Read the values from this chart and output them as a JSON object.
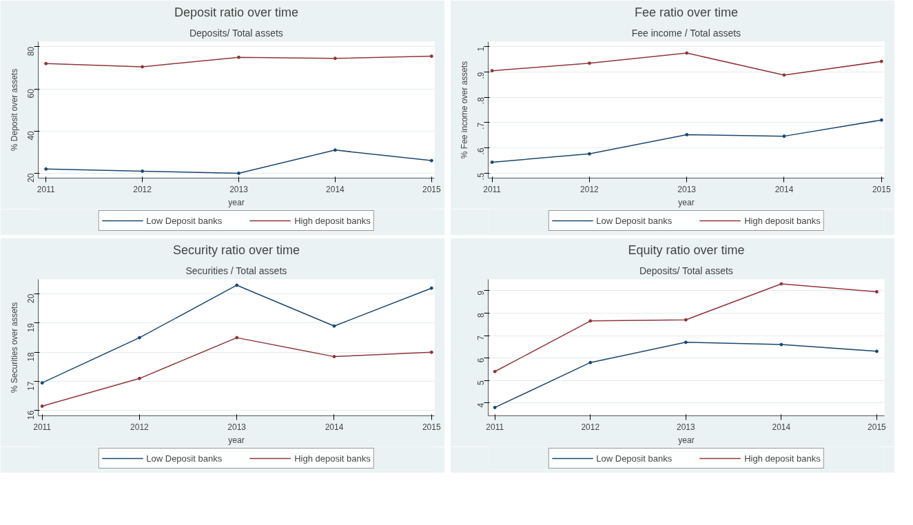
{
  "chart_data": [
    {
      "type": "line",
      "title": "Deposit ratio over time",
      "subtitle": "Deposits/ Total assets",
      "xlabel": "year",
      "ylabel": "% Deposit over assets",
      "x": [
        2011,
        2012,
        2013,
        2014,
        2015
      ],
      "xlim": [
        2010.92,
        2015.03
      ],
      "xticks": [
        2011,
        2012,
        2013,
        2014,
        2015
      ],
      "ylim": [
        17.7,
        82.4
      ],
      "yticks": [
        20,
        40,
        60,
        80
      ],
      "grid": "y",
      "legend": "bottom",
      "marker": "circle",
      "line_style": "solid",
      "series": [
        {
          "name": "Low Deposit banks",
          "color": "#1a476f",
          "values": [
            22,
            21,
            20,
            31,
            26
          ]
        },
        {
          "name": "High deposit banks",
          "color": "#90353b",
          "values": [
            72,
            70.5,
            75,
            74.5,
            75.5
          ]
        }
      ]
    },
    {
      "type": "line",
      "title": "Fee ratio over time",
      "subtitle": "Fee income / Total assets",
      "xlabel": "year",
      "ylabel": "% Fee income over assets",
      "x": [
        2011,
        2012,
        2013,
        2014,
        2015
      ],
      "xlim": [
        2010.96,
        2015.03
      ],
      "xticks": [
        2011,
        2012,
        2013,
        2014,
        2015
      ],
      "ylim": [
        0.48,
        1.02
      ],
      "yticks": [
        {
          "value": 0.5,
          "label": ".5"
        },
        {
          "value": 0.6,
          "label": ".6"
        },
        {
          "value": 0.7,
          "label": ".7"
        },
        {
          "value": 0.8,
          "label": ".8"
        },
        {
          "value": 0.9,
          "label": ".9"
        },
        1
      ],
      "grid": "y",
      "legend": "bottom",
      "marker": "circle",
      "line_style": "solid",
      "series": [
        {
          "name": "Low Deposit banks",
          "color": "#1a476f",
          "values": [
            0.543,
            0.576,
            0.652,
            0.646,
            0.71
          ]
        },
        {
          "name": "High deposit banks",
          "color": "#90353b",
          "values": [
            0.905,
            0.935,
            0.975,
            0.888,
            0.942
          ]
        }
      ]
    },
    {
      "type": "line",
      "title": "Security ratio over time",
      "subtitle": "Securities / Total assets",
      "xlabel": "year",
      "ylabel": "% Securities over assets",
      "x": [
        2011,
        2012,
        2013,
        2014,
        2015
      ],
      "xlim": [
        2010.96,
        2015.03
      ],
      "xticks": [
        2011,
        2012,
        2013,
        2014,
        2015
      ],
      "ylim": [
        15.82,
        20.5
      ],
      "yticks": [
        16,
        17,
        18,
        19,
        20
      ],
      "grid": "y",
      "legend": "bottom",
      "marker": "circle",
      "line_style": "solid",
      "series": [
        {
          "name": "Low Deposit banks",
          "color": "#1a476f",
          "values": [
            16.95,
            18.5,
            20.3,
            18.9,
            20.2
          ]
        },
        {
          "name": "High deposit banks",
          "color": "#90353b",
          "values": [
            16.15,
            17.1,
            18.5,
            17.85,
            18
          ]
        }
      ]
    },
    {
      "type": "line",
      "title": "Equity ratio over time",
      "subtitle": "Deposits/ Total assets",
      "xlabel": "year",
      "x": [
        2011,
        2012,
        2013,
        2014,
        2015
      ],
      "xlim": [
        2010.93,
        2015.08
      ],
      "xticks": [
        2011,
        2012,
        2013,
        2014,
        2015
      ],
      "ylim": [
        3.43,
        9.5
      ],
      "yticks": [
        4,
        5,
        6,
        7,
        8,
        9
      ],
      "grid": "y",
      "legend": "bottom",
      "marker": "circle",
      "line_style": "solid",
      "series": [
        {
          "name": "Low Deposit banks",
          "color": "#1a476f",
          "values": [
            3.8,
            5.8,
            6.7,
            6.6,
            6.3
          ]
        },
        {
          "name": "High deposit banks",
          "color": "#90353b",
          "values": [
            5.4,
            7.65,
            7.7,
            9.3,
            8.95
          ]
        }
      ]
    }
  ]
}
